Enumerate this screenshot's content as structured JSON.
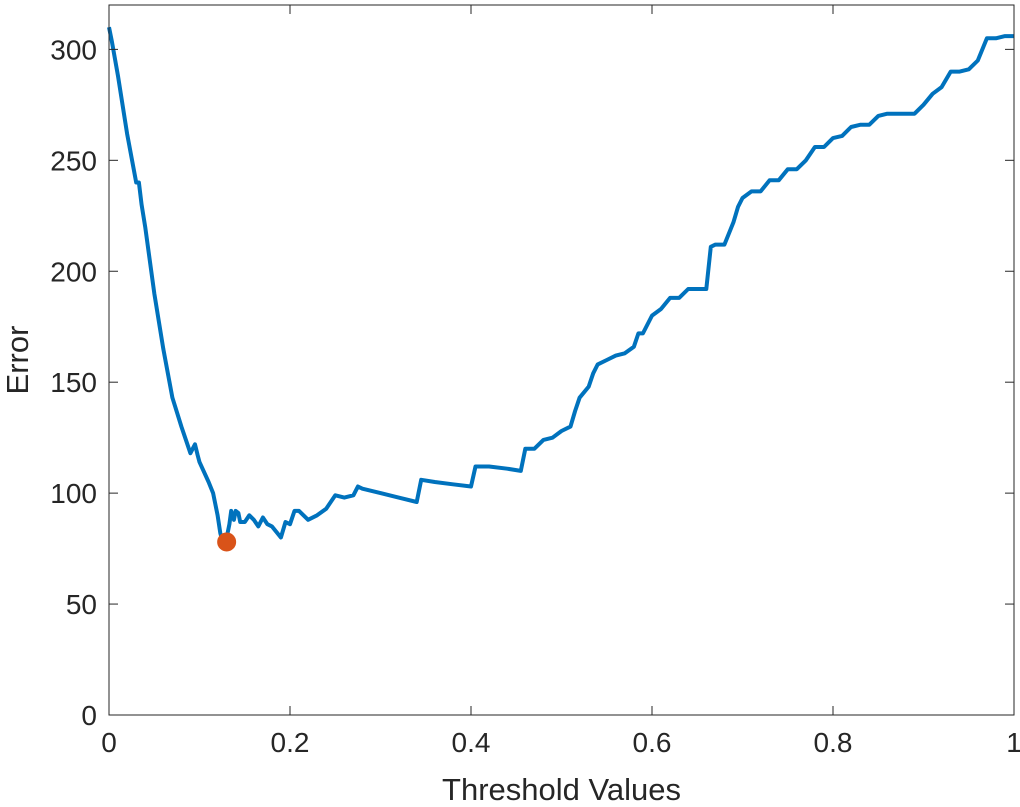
{
  "chart_data": {
    "type": "line",
    "title": "",
    "xlabel": "Threshold Values",
    "ylabel": "Error",
    "xlim": [
      0,
      1
    ],
    "ylim": [
      0,
      320
    ],
    "xticks": [
      0,
      0.2,
      0.4,
      0.6,
      0.8,
      1
    ],
    "xtick_labels": [
      "0",
      "0.2",
      "0.4",
      "0.6",
      "0.8",
      "1"
    ],
    "yticks": [
      0,
      50,
      100,
      150,
      200,
      250,
      300
    ],
    "ytick_labels": [
      "0",
      "50",
      "100",
      "150",
      "200",
      "250",
      "300"
    ],
    "grid": false,
    "box": true,
    "series": [
      {
        "color": "#0072BD",
        "x": [
          0.0,
          0.003,
          0.01,
          0.02,
          0.03,
          0.033,
          0.036,
          0.04,
          0.05,
          0.06,
          0.07,
          0.08,
          0.09,
          0.095,
          0.098,
          0.1,
          0.11,
          0.115,
          0.117,
          0.12,
          0.123,
          0.125,
          0.128,
          0.13,
          0.133,
          0.135,
          0.138,
          0.14,
          0.143,
          0.145,
          0.15,
          0.155,
          0.16,
          0.165,
          0.17,
          0.175,
          0.18,
          0.19,
          0.195,
          0.2,
          0.205,
          0.21,
          0.22,
          0.23,
          0.24,
          0.25,
          0.26,
          0.27,
          0.275,
          0.28,
          0.3,
          0.32,
          0.34,
          0.345,
          0.36,
          0.38,
          0.4,
          0.405,
          0.42,
          0.44,
          0.455,
          0.46,
          0.47,
          0.48,
          0.49,
          0.5,
          0.51,
          0.515,
          0.52,
          0.53,
          0.535,
          0.54,
          0.55,
          0.56,
          0.57,
          0.58,
          0.585,
          0.59,
          0.6,
          0.61,
          0.62,
          0.63,
          0.64,
          0.66,
          0.665,
          0.67,
          0.68,
          0.69,
          0.695,
          0.7,
          0.71,
          0.72,
          0.73,
          0.74,
          0.75,
          0.76,
          0.77,
          0.78,
          0.79,
          0.8,
          0.81,
          0.82,
          0.83,
          0.84,
          0.85,
          0.86,
          0.87,
          0.88,
          0.89,
          0.9,
          0.91,
          0.92,
          0.93,
          0.94,
          0.95,
          0.96,
          0.97,
          0.98,
          0.99,
          1.0
        ],
        "y": [
          310,
          304,
          288,
          262,
          240,
          240,
          230,
          220,
          190,
          165,
          143,
          130,
          118,
          122,
          117,
          114,
          105,
          100,
          96,
          90,
          82,
          79,
          78,
          80,
          86,
          92,
          88,
          92,
          91,
          87,
          87,
          90,
          88,
          85,
          89,
          86,
          85,
          80,
          87,
          86,
          92,
          92,
          88,
          90,
          93,
          99,
          98,
          99,
          103,
          102,
          100,
          98,
          96,
          106,
          105,
          104,
          103,
          112,
          112,
          111,
          110,
          120,
          120,
          124,
          125,
          128,
          130,
          137,
          143,
          148,
          154,
          158,
          160,
          162,
          163,
          166,
          172,
          172,
          180,
          183,
          188,
          188,
          192,
          192,
          211,
          212,
          212,
          222,
          229,
          233,
          236,
          236,
          241,
          241,
          246,
          246,
          250,
          256,
          256,
          260,
          261,
          265,
          266,
          266,
          270,
          271,
          271,
          271,
          271,
          275,
          280,
          283,
          290,
          290,
          291,
          295,
          305,
          305,
          306,
          306
        ]
      }
    ],
    "marker": {
      "x": 0.13,
      "y": 78,
      "color": "#D95319"
    }
  }
}
